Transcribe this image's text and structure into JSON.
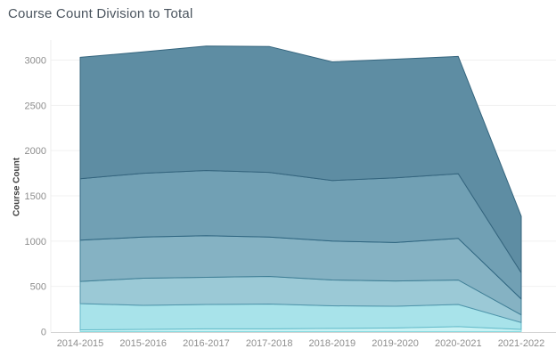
{
  "title": "Course Count Division to Total",
  "axes": {
    "y_title": "Course Count",
    "y_ticks": [
      0,
      500,
      1000,
      1500,
      2000,
      2500,
      3000
    ]
  },
  "palette": {
    "background": "#ffffff",
    "gridline": "#f1f1f1",
    "axis_line": "#d4d4d4",
    "plot_border": "#eeeeee",
    "title_color": "#4a545e",
    "tick_label_color": "#8e8e8e"
  },
  "chart_data": {
    "type": "area",
    "stacked": true,
    "title": "Course Count Division to Total",
    "xlabel": "",
    "ylabel": "Course Count",
    "ylim": [
      0,
      3200
    ],
    "grid": true,
    "legend": false,
    "categories": [
      "2014-2015",
      "2015-2016",
      "2016-2017",
      "2017-2018",
      "2018-2019",
      "2019-2020",
      "2020-2021",
      "2021-2022"
    ],
    "series": [
      {
        "id": "band-1",
        "color": "#c9f2f4",
        "edge": "#86dbe0",
        "values": [
          20,
          25,
          30,
          30,
          35,
          40,
          55,
          25
        ]
      },
      {
        "id": "band-2",
        "color": "#a8e3ea",
        "edge": "#63bac9",
        "values": [
          290,
          265,
          270,
          275,
          250,
          240,
          245,
          75
        ]
      },
      {
        "id": "band-3",
        "color": "#9bc9d6",
        "edge": "#4f94aa",
        "values": [
          245,
          300,
          300,
          305,
          285,
          280,
          270,
          85
        ]
      },
      {
        "id": "band-4",
        "color": "#85b2c3",
        "edge": "#3f7e95",
        "values": [
          455,
          455,
          460,
          435,
          430,
          425,
          460,
          175
        ]
      },
      {
        "id": "band-5",
        "color": "#71a0b4",
        "edge": "#2f6580",
        "values": [
          680,
          705,
          720,
          715,
          670,
          715,
          715,
          290
        ]
      },
      {
        "id": "band-6",
        "color": "#5e8da3",
        "edge": "#35657e",
        "values": [
          1340,
          1340,
          1375,
          1390,
          1310,
          1310,
          1295,
          625
        ]
      }
    ],
    "stacked_totals": [
      3030,
      3090,
      3155,
      3150,
      2980,
      3010,
      3040,
      1275
    ]
  }
}
